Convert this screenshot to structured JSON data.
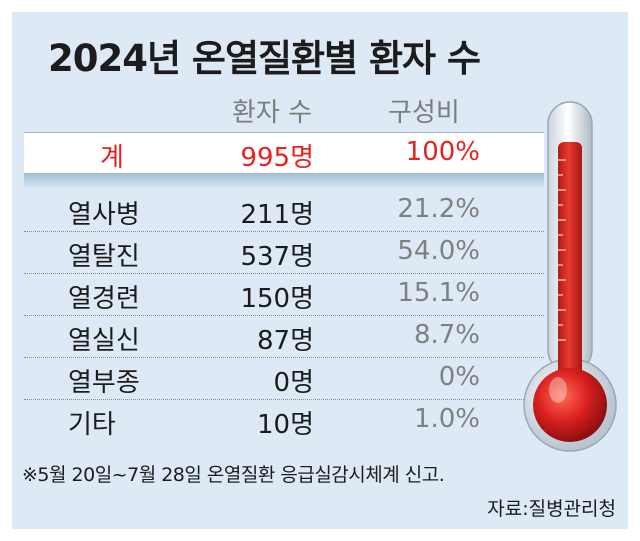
{
  "title": "2024년 온열질환별 환자 수",
  "columns": {
    "patients": "환자 수",
    "share": "구성비"
  },
  "total": {
    "name": "계",
    "patients": "995명",
    "share": "100%"
  },
  "rows": [
    {
      "name": "열사병",
      "patients": "211명",
      "share": "21.2%"
    },
    {
      "name": "열탈진",
      "patients": "537명",
      "share": "54.0%"
    },
    {
      "name": "열경련",
      "patients": "150명",
      "share": "15.1%"
    },
    {
      "name": "열실신",
      "patients": "87명",
      "share": "8.7%"
    },
    {
      "name": "열부종",
      "patients": "0명",
      "share": "0%"
    },
    {
      "name": "기타",
      "patients": "10명",
      "share": "1.0%"
    }
  ],
  "footnote": "※5월 20일~7월 28일 온열질환 응급실감시체계 신고.",
  "source": "자료:질병관리청",
  "colors": {
    "background": "#dde9f5",
    "total_text": "#e8231f",
    "thermometer": "#d9201f"
  },
  "chart_data": {
    "type": "table",
    "title": "2024년 온열질환별 환자 수",
    "columns": [
      "",
      "환자 수",
      "구성비"
    ],
    "rows": [
      [
        "계",
        995,
        100.0
      ],
      [
        "열사병",
        211,
        21.2
      ],
      [
        "열탈진",
        537,
        54.0
      ],
      [
        "열경련",
        150,
        15.1
      ],
      [
        "열실신",
        87,
        8.7
      ],
      [
        "열부종",
        0,
        0.0
      ],
      [
        "기타",
        10,
        1.0
      ]
    ]
  }
}
